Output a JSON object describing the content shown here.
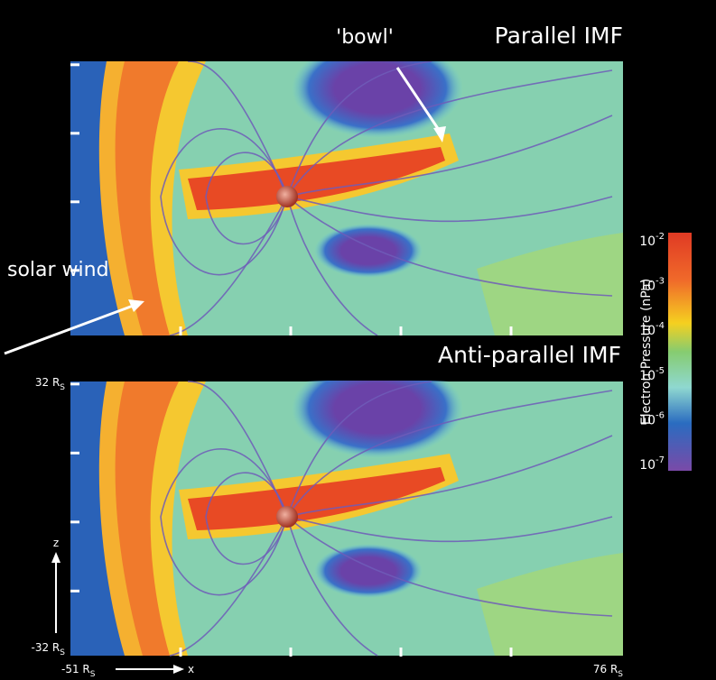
{
  "panels": [
    {
      "title": "Parallel IMF",
      "annotations": [
        "'bowl'",
        "solar wind"
      ]
    },
    {
      "title": "Anti-parallel IMF"
    }
  ],
  "axes": {
    "z_top": {
      "text": "32 R",
      "sub": "S"
    },
    "z_bottom": {
      "text": "-32 R",
      "sub": "S"
    },
    "x_left": {
      "text": "-51 R",
      "sub": "S"
    },
    "x_right": {
      "text": "76 R",
      "sub": "S"
    },
    "z_label": "z",
    "x_label": "x"
  },
  "colorbar": {
    "label": "Electron Pressure (nPa)",
    "ticks": [
      {
        "base": "10",
        "exp": "-2"
      },
      {
        "base": "10",
        "exp": "-3"
      },
      {
        "base": "10",
        "exp": "-4"
      },
      {
        "base": "10",
        "exp": "-5"
      },
      {
        "base": "10",
        "exp": "-6"
      },
      {
        "base": "10",
        "exp": "-7"
      }
    ]
  }
}
